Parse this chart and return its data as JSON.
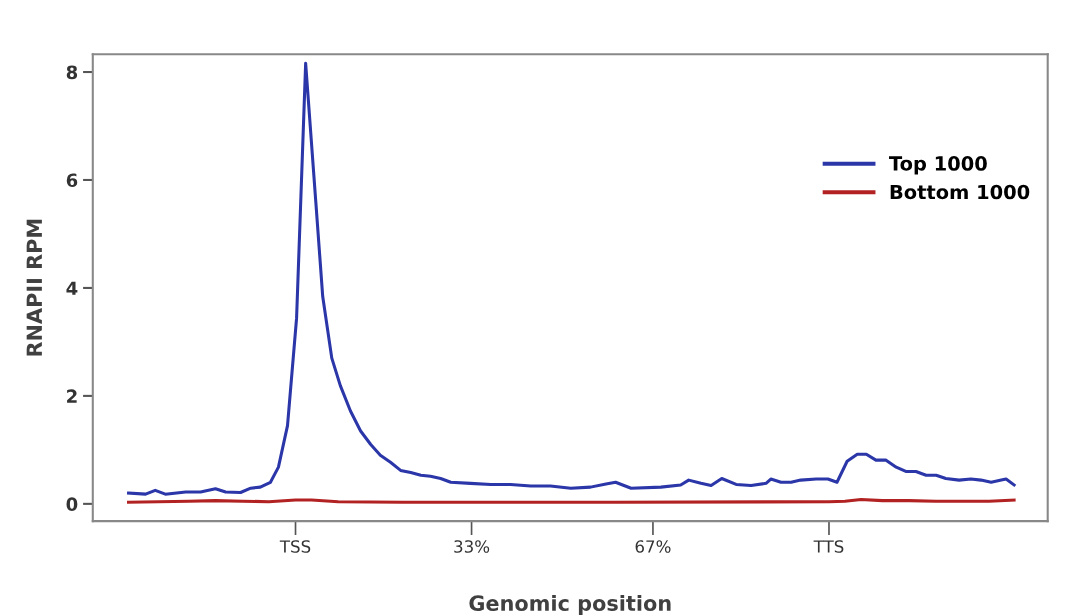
{
  "chart_data": {
    "type": "line",
    "xlabel": "Genomic position",
    "ylabel": "RNAPII RPM",
    "xlim": [
      -38,
      141
    ],
    "ylim": [
      -0.32,
      8.33
    ],
    "xticks": [
      {
        "value": 0,
        "label": "TSS"
      },
      {
        "value": 33,
        "label": "33%"
      },
      {
        "value": 67,
        "label": "67%"
      },
      {
        "value": 100,
        "label": "TTS"
      }
    ],
    "yticks": [
      0,
      2,
      4,
      6,
      8
    ],
    "grid": false,
    "legend": "top right",
    "marker": "none",
    "line_style": "solid",
    "series": [
      {
        "name": "Top 1000",
        "color": "#2b36a8",
        "x": [
          -31.3,
          -28.1,
          -26.3,
          -24.4,
          -20.6,
          -17.8,
          -15.0,
          -13.1,
          -10.3,
          -8.4,
          -6.6,
          -4.7,
          -3.2,
          -1.5,
          0.2,
          1.9,
          3.8,
          5.1,
          6.8,
          8.4,
          10.3,
          12.2,
          14.1,
          15.9,
          17.8,
          19.7,
          21.6,
          23.5,
          25.3,
          27.2,
          29.1,
          32.8,
          36.6,
          40.3,
          44.1,
          47.8,
          51.6,
          55.3,
          58.2,
          60.0,
          62.9,
          68.5,
          72.2,
          73.7,
          76.0,
          77.9,
          79.9,
          82.6,
          85.4,
          88.2,
          89.1,
          91.0,
          92.9,
          94.7,
          97.6,
          99.8,
          101.5,
          103.4,
          105.3,
          107.0,
          108.8,
          110.7,
          112.6,
          114.4,
          116.3,
          118.2,
          120.1,
          121.9,
          124.4,
          126.6,
          128.5,
          130.4,
          132.3,
          133.2,
          134.7
        ],
        "values": [
          0.2,
          0.18,
          0.25,
          0.18,
          0.22,
          0.22,
          0.28,
          0.22,
          0.21,
          0.29,
          0.31,
          0.4,
          0.68,
          1.45,
          3.44,
          8.16,
          5.6,
          3.84,
          2.7,
          2.19,
          1.72,
          1.35,
          1.1,
          0.9,
          0.77,
          0.62,
          0.58,
          0.53,
          0.51,
          0.47,
          0.4,
          0.38,
          0.36,
          0.36,
          0.33,
          0.33,
          0.29,
          0.31,
          0.37,
          0.4,
          0.29,
          0.31,
          0.35,
          0.44,
          0.38,
          0.34,
          0.47,
          0.36,
          0.34,
          0.38,
          0.46,
          0.4,
          0.4,
          0.44,
          0.46,
          0.46,
          0.4,
          0.79,
          0.92,
          0.92,
          0.81,
          0.81,
          0.68,
          0.6,
          0.6,
          0.53,
          0.53,
          0.47,
          0.44,
          0.46,
          0.44,
          0.4,
          0.44,
          0.46,
          0.35
        ]
      },
      {
        "name": "Bottom 1000",
        "color": "#b22222",
        "x": [
          -31.3,
          -20,
          -15,
          -10,
          -5,
          0,
          3,
          8,
          20,
          60,
          100,
          103,
          106,
          110,
          115,
          120,
          130,
          134.7
        ],
        "values": [
          0.03,
          0.05,
          0.06,
          0.05,
          0.04,
          0.07,
          0.07,
          0.04,
          0.03,
          0.03,
          0.04,
          0.05,
          0.08,
          0.06,
          0.06,
          0.05,
          0.05,
          0.07
        ]
      }
    ]
  }
}
